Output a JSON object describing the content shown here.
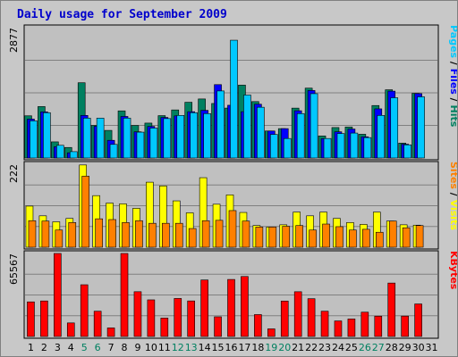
{
  "title": "Daily usage for September 2009",
  "chart_data": {
    "type": "bar",
    "title": "Daily usage for September 2009",
    "categories": [
      "1",
      "2",
      "3",
      "4",
      "5",
      "6",
      "7",
      "8",
      "9",
      "10",
      "11",
      "12",
      "13",
      "14",
      "15",
      "16",
      "17",
      "18",
      "19",
      "20",
      "21",
      "22",
      "23",
      "24",
      "25",
      "26",
      "27",
      "28",
      "29",
      "30",
      "31"
    ],
    "weekend_days": [
      "5",
      "6",
      "12",
      "13",
      "19",
      "20",
      "26",
      "27"
    ],
    "panels": [
      {
        "id": "pages-files-hits",
        "ymax_label": "2877",
        "ymax": 2877,
        "labels": [
          {
            "text": "Pages",
            "color": "#00c8ff"
          },
          {
            "text": " / ",
            "color": "#000000"
          },
          {
            "text": "Files",
            "color": "#0000ff"
          },
          {
            "text": " / ",
            "color": "#000000"
          },
          {
            "text": "Hits",
            "color": "#008060"
          }
        ],
        "series": [
          {
            "name": "Hits",
            "color": "#008060",
            "values": [
              931,
              1135,
              356,
              232,
              1661,
              718,
              609,
              1040,
              718,
              770,
              935,
              1061,
              1230,
              1303,
              1203,
              1102,
              1609,
              1245,
              596,
              648,
              1101,
              1542,
              487,
              672,
              685,
              524,
              1158,
              1506,
              329,
              1427,
              0
            ]
          },
          {
            "name": "Files",
            "color": "#0000ff",
            "values": [
              858,
              1018,
              247,
              114,
              940,
              700,
              390,
              917,
              578,
              697,
              895,
              930,
              1022,
              1052,
              1620,
              1164,
              1022,
              1187,
              596,
              648,
              1043,
              1490,
              425,
              578,
              639,
              468,
              1085,
              1476,
              305,
              1421,
              0
            ]
          },
          {
            "name": "Pages",
            "color": "#00c8ff",
            "values": [
              820,
              1000,
              280,
              140,
              880,
              880,
              300,
              880,
              570,
              660,
              870,
              940,
              1000,
              980,
              1480,
              2600,
              1390,
              1120,
              520,
              430,
              980,
              1420,
              430,
              540,
              550,
              450,
              940,
              1330,
              290,
              1350,
              0
            ]
          }
        ]
      },
      {
        "id": "visits-sites",
        "ymax_label": "222",
        "ymax": 222,
        "labels": [
          {
            "text": "Sites",
            "color": "#ff8000"
          },
          {
            "text": " / ",
            "color": "#000000"
          },
          {
            "text": "Visits",
            "color": "#ffff00"
          }
        ],
        "series": [
          {
            "name": "Visits",
            "color": "#ffff00",
            "values": [
              110,
              84,
              68,
              77,
              220,
              138,
              118,
              116,
              104,
              174,
              164,
              124,
              92,
              186,
              115,
              140,
              93,
              58,
              54,
              60,
              94,
              84,
              94,
              77,
              66,
              61,
              94,
              70,
              60,
              59,
              0
            ]
          },
          {
            "name": "Sites",
            "color": "#ff8000",
            "values": [
              71,
              70,
              46,
              66,
              190,
              76,
              74,
              66,
              71,
              64,
              64,
              64,
              50,
              71,
              72,
              98,
              70,
              54,
              54,
              56,
              58,
              46,
              62,
              55,
              46,
              48,
              40,
              70,
              52,
              58,
              0
            ]
          }
        ]
      },
      {
        "id": "kbytes",
        "ymax_label": "65567",
        "ymax": 65567,
        "labels": [
          {
            "text": "KBytes",
            "color": "#ff0000"
          }
        ],
        "series": [
          {
            "name": "KBytes",
            "color": "#ff0000",
            "values": [
              27330,
              28060,
              65567,
              10700,
              40860,
              19950,
              6770,
              65567,
              35370,
              28930,
              14580,
              30040,
              28080,
              44640,
              15530,
              45060,
              47390,
              17310,
              6010,
              28000,
              35350,
              29850,
              19950,
              12280,
              13830,
              19200,
              16050,
              42200,
              16100,
              25700,
              0
            ]
          }
        ]
      }
    ]
  }
}
